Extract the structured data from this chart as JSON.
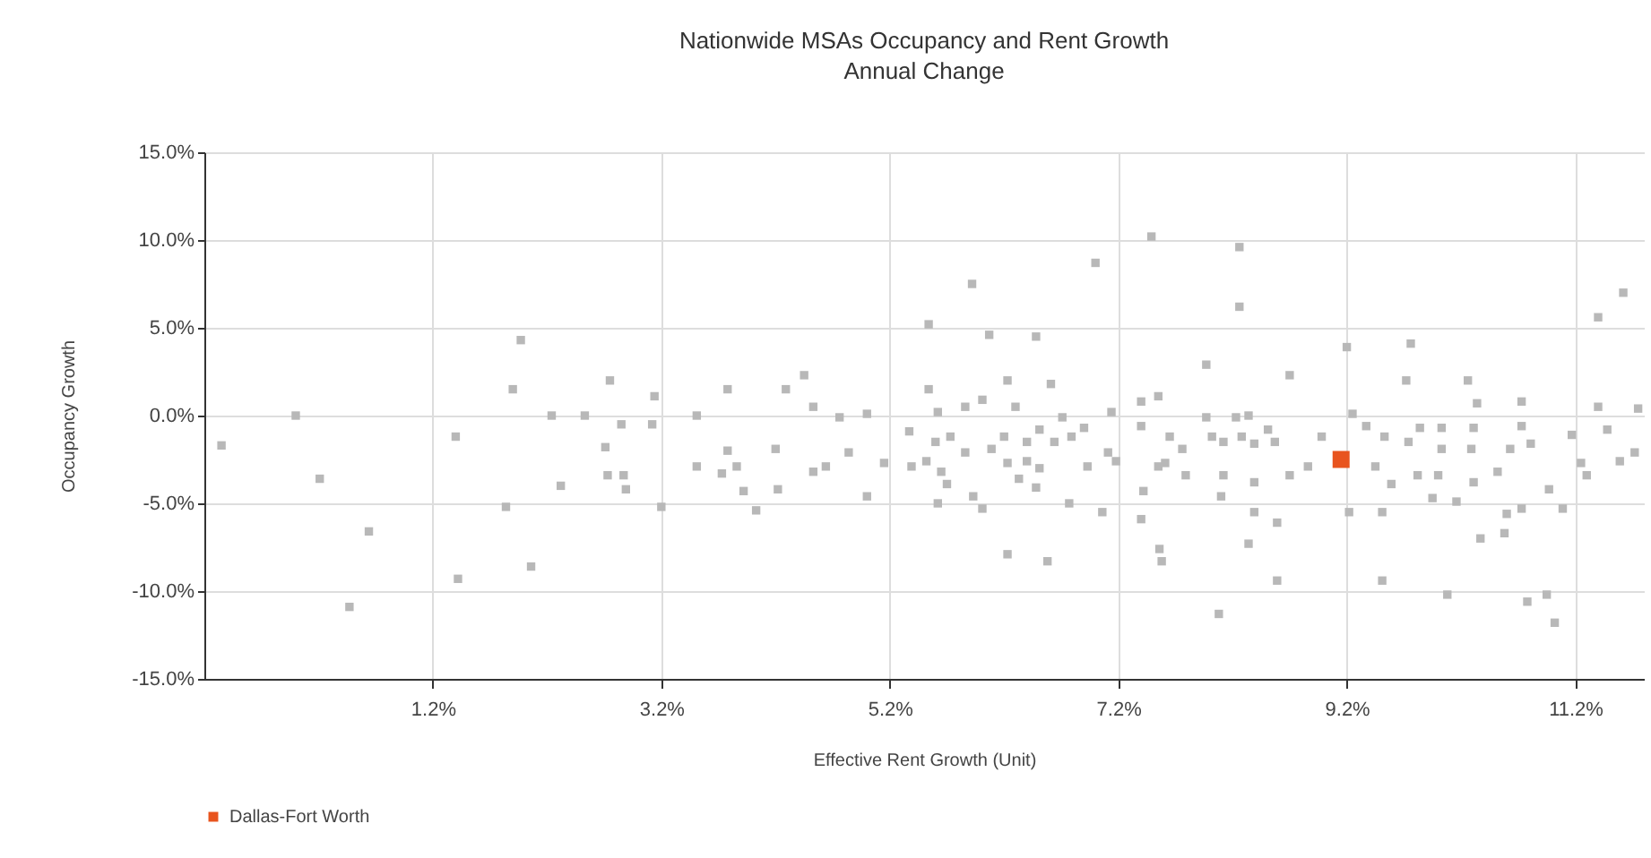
{
  "chart_data": {
    "type": "scatter",
    "title": "Nationwide MSAs Occupancy and Rent Growth",
    "subtitle": "Annual Change",
    "xlabel": "Effective Rent Growth (Unit)",
    "ylabel": "Occupancy Growth",
    "xlim": [
      -0.8,
      11.8
    ],
    "ylim": [
      -15,
      15
    ],
    "xticks": [
      {
        "value": 1.2,
        "label": "1.2%"
      },
      {
        "value": 3.2,
        "label": "3.2%"
      },
      {
        "value": 5.2,
        "label": "5.2%"
      },
      {
        "value": 7.2,
        "label": "7.2%"
      },
      {
        "value": 9.2,
        "label": "9.2%"
      },
      {
        "value": 11.2,
        "label": "11.2%"
      }
    ],
    "yticks": [
      {
        "value": -15,
        "label": "-15.0%"
      },
      {
        "value": -10,
        "label": "-10.0%"
      },
      {
        "value": -5,
        "label": "-5.0%"
      },
      {
        "value": 0,
        "label": "0.0%"
      },
      {
        "value": 5,
        "label": "5.0%"
      },
      {
        "value": 10,
        "label": "10.0%"
      },
      {
        "value": 15,
        "label": "15.0%"
      }
    ],
    "grid": true,
    "legend": "bottom",
    "marker": "square",
    "series": [
      {
        "color": "#b8b8b8",
        "x": [
          -0.65,
          0.0,
          0.21,
          0.64,
          0.47,
          1.4,
          1.42,
          1.84,
          1.97,
          1.9,
          2.06,
          2.24,
          2.32,
          2.53,
          2.71,
          2.75,
          2.73,
          2.85,
          2.87,
          2.89,
          3.14,
          3.12,
          3.2,
          3.51,
          3.78,
          3.78,
          3.51,
          3.73,
          3.86,
          3.92,
          4.03,
          4.2,
          4.22,
          4.29,
          4.45,
          4.53,
          4.53,
          4.64,
          4.76,
          4.84,
          5.0,
          5.0,
          5.15,
          5.37,
          5.39,
          5.52,
          5.54,
          5.54,
          5.6,
          5.62,
          5.65,
          5.7,
          5.73,
          5.62,
          5.86,
          5.86,
          5.92,
          5.93,
          6.01,
          6.01,
          6.07,
          6.09,
          6.2,
          6.23,
          6.23,
          6.23,
          6.3,
          6.33,
          6.4,
          6.4,
          6.48,
          6.48,
          6.51,
          6.51,
          6.58,
          6.61,
          6.64,
          6.71,
          6.77,
          6.79,
          6.9,
          6.93,
          7.0,
          7.06,
          7.11,
          7.14,
          7.18,
          7.4,
          7.42,
          7.4,
          7.4,
          7.49,
          7.55,
          7.56,
          7.55,
          8.26,
          8.26,
          7.97,
          7.65,
          7.76,
          7.61,
          7.79,
          7.97,
          8.02,
          8.12,
          8.23,
          8.34,
          8.28,
          8.39,
          8.51,
          8.57,
          8.12,
          8.39,
          8.1,
          8.39,
          8.59,
          8.34,
          7.58,
          8.59,
          8.08,
          8.7,
          8.7,
          8.86,
          8.98,
          9.2,
          9.25,
          9.22,
          9.37,
          9.53,
          9.45,
          9.59,
          9.51,
          9.51,
          9.72,
          9.76,
          9.74,
          9.84,
          9.82,
          10.0,
          10.03,
          10.03,
          9.95,
          10.08,
          10.16,
          10.26,
          10.29,
          10.31,
          10.31,
          10.34,
          10.37,
          10.52,
          10.58,
          10.6,
          10.63,
          10.73,
          10.73,
          10.73,
          10.81,
          10.78,
          10.97,
          10.95,
          11.02,
          11.09,
          11.17,
          11.25,
          11.3,
          11.4,
          11.4,
          11.48,
          11.62,
          11.59,
          11.72,
          11.75
        ],
        "values": [
          -1.7,
          0,
          -3.6,
          -6.6,
          -10.9,
          -1.2,
          -9.3,
          -5.2,
          4.3,
          1.5,
          -8.6,
          0,
          -4.0,
          0,
          -1.8,
          2.0,
          -3.4,
          -0.5,
          -3.4,
          -4.2,
          1.1,
          -0.5,
          -5.2,
          0,
          1.5,
          -2.0,
          -2.9,
          -3.3,
          -2.9,
          -4.3,
          -5.4,
          -1.9,
          -4.2,
          1.5,
          2.3,
          0.5,
          -3.2,
          -2.9,
          -0.1,
          -2.1,
          0.1,
          -4.6,
          -2.7,
          -0.9,
          -2.9,
          -2.6,
          1.5,
          5.2,
          -1.5,
          0.2,
          -3.2,
          -3.9,
          -1.2,
          -5.0,
          0.5,
          -2.1,
          7.5,
          -4.6,
          0.9,
          -5.3,
          4.6,
          -1.9,
          -1.2,
          2.0,
          -2.7,
          -7.9,
          0.5,
          -3.6,
          -1.5,
          -2.6,
          4.5,
          -4.1,
          -0.8,
          -3.0,
          -8.3,
          1.8,
          -1.5,
          -0.1,
          -5.0,
          -1.2,
          -0.7,
          -2.9,
          8.7,
          -5.5,
          -2.1,
          0.2,
          -2.6,
          -5.9,
          -4.3,
          0.8,
          -0.6,
          10.2,
          1.1,
          -7.6,
          -2.9,
          9.6,
          6.2,
          2.9,
          -1.2,
          -1.9,
          -2.7,
          -3.4,
          -0.1,
          -1.2,
          -1.5,
          -0.1,
          0,
          -1.2,
          -1.6,
          -0.8,
          -1.5,
          -3.4,
          -3.8,
          -4.6,
          -5.5,
          -6.1,
          -7.3,
          -8.3,
          -9.4,
          -11.3,
          2.3,
          -3.4,
          -2.9,
          -1.2,
          3.9,
          0.1,
          -5.5,
          -0.6,
          -1.2,
          -2.9,
          -3.9,
          -5.5,
          -9.4,
          2.0,
          4.1,
          -1.5,
          -0.7,
          -3.4,
          -3.4,
          -0.7,
          -1.9,
          -4.7,
          -10.2,
          -4.9,
          2.0,
          -1.9,
          -0.7,
          -3.8,
          0.7,
          -7.0,
          -3.2,
          -6.7,
          -5.6,
          -1.9,
          0.8,
          -0.6,
          -5.3,
          -1.6,
          -10.6,
          -4.2,
          -10.2,
          -11.8,
          -5.3,
          -1.1,
          -2.7,
          -3.4,
          5.6,
          0.5,
          -0.8,
          7.0,
          -2.6,
          -2.1,
          0.4
        ]
      },
      {
        "name": "Dallas-Fort Worth",
        "color": "#e8541e",
        "x": [
          9.15
        ],
        "values": [
          -2.5
        ]
      }
    ]
  }
}
